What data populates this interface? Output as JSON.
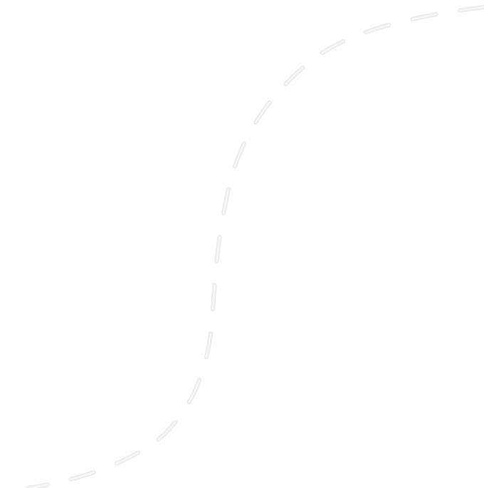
{
  "canvas": {
    "background_color": "#ffffff",
    "curve_color": "#f7f7f7",
    "curve_style": "dashed"
  }
}
